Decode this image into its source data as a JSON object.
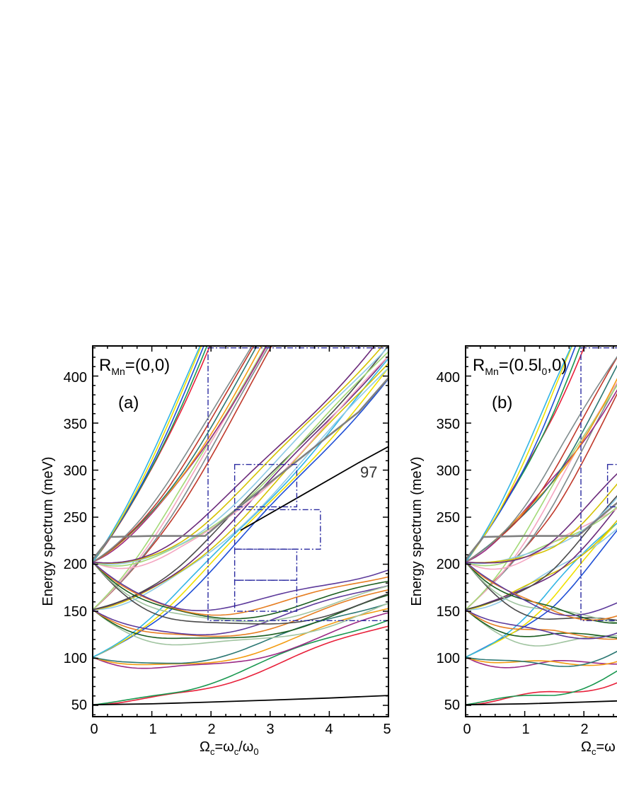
{
  "chart_data": [
    {
      "type": "line",
      "panel_label": "(a)",
      "annotation_main": "R",
      "annotation_sub": "Mn",
      "annotation_rest": "=(0,0)",
      "state_label": "97",
      "ylabel": "Energy spectrum (meV)",
      "xlabel": {
        "main": "Ω",
        "sub1": "c",
        "mid": "=ω",
        "sub2": "c",
        "slash": "/ω",
        "sub3": "0"
      },
      "xlim": [
        0,
        5
      ],
      "ylim": [
        38,
        432
      ],
      "xticks": [
        0,
        1,
        2,
        3,
        4,
        5
      ],
      "yticks": [
        50,
        100,
        150,
        200,
        250,
        300,
        350,
        400
      ],
      "level_spacing_meV": 50.6,
      "landau_groups": [
        {
          "n_shell": 0,
          "E0": 50.6
        },
        {
          "n_shell": 1,
          "E0": 101.2
        },
        {
          "n_shell": 2,
          "E0": 151.8
        },
        {
          "n_shell": 3,
          "E0": 202.4
        }
      ],
      "representative_levels": [
        {
          "name": "ground",
          "x": [
            0,
            1,
            2,
            3,
            4,
            5
          ],
          "y": [
            50.6,
            51.6,
            53.5,
            55.6,
            57.8,
            60.5
          ],
          "color": "#000000"
        },
        {
          "name": "level-97",
          "x": [
            2.5,
            3.5,
            4.5,
            5
          ],
          "y": [
            236,
            272,
            308,
            325
          ],
          "color": "#000000"
        },
        {
          "name": "upper-envelope",
          "x": [
            0,
            0.3,
            1,
            1.9,
            2.5,
            3.5,
            4.5,
            5
          ],
          "y": [
            205,
            229,
            230,
            230,
            262,
            312,
            362,
            398
          ],
          "color": "#808080"
        }
      ],
      "boxes": [
        {
          "x": [
            1.95,
            5.0
          ],
          "y": [
            140,
            430
          ],
          "style": "dash-dot",
          "color": "#2a2aa0"
        },
        {
          "x": [
            2.4,
            3.45
          ],
          "y": [
            261,
            306
          ],
          "style": "dash-dot",
          "color": "#2a2aa0"
        },
        {
          "x": [
            2.4,
            3.85
          ],
          "y": [
            216,
            258
          ],
          "style": "dash-dot",
          "color": "#2a2aa0"
        },
        {
          "x": [
            2.4,
            3.45
          ],
          "y": [
            183,
            216
          ],
          "style": "dash-dot",
          "color": "#2a2aa0"
        },
        {
          "x": [
            2.4,
            3.45
          ],
          "y": [
            150,
            183
          ],
          "style": "dash-dot",
          "color": "#2a2aa0"
        }
      ]
    },
    {
      "type": "line",
      "panel_label": "(b)",
      "annotation_main": "R",
      "annotation_sub": "Mn",
      "annotation_rest_a": "=(0.5l",
      "annotation_sub2": "0",
      "annotation_rest_b": ",0)",
      "ylabel": "Energy spectrum (meV)",
      "xlabel_visible": {
        "main": "Ω",
        "sub1": "c",
        "mid": "=ω"
      },
      "xlim": [
        0,
        5
      ],
      "ylim": [
        38,
        432
      ],
      "xticks_visible": [
        0,
        1,
        2
      ],
      "yticks": [
        50,
        100,
        150,
        200,
        250,
        300,
        350,
        400
      ],
      "boxes": [
        {
          "x": [
            1.95,
            5.0
          ],
          "y": [
            140,
            430
          ],
          "style": "dash-dot",
          "color": "#2a2aa0"
        },
        {
          "x": [
            2.4,
            3.45
          ],
          "y": [
            261,
            306
          ],
          "style": "dash-dot",
          "color": "#2a2aa0"
        }
      ]
    }
  ],
  "palette": [
    "#e8203a",
    "#1a9850",
    "#1f4fd6",
    "#f0e000",
    "#33b5e5",
    "#9b2a86",
    "#f39c12",
    "#2c7873",
    "#c0392b",
    "#7f8c8d",
    "#f4a6c1",
    "#a3d977",
    "#8ecae6",
    "#d4c200",
    "#6b2a7a",
    "#4a4a4a",
    "#a0c4a0",
    "#1b5e20",
    "#e67e22",
    "#5d3a9b"
  ]
}
